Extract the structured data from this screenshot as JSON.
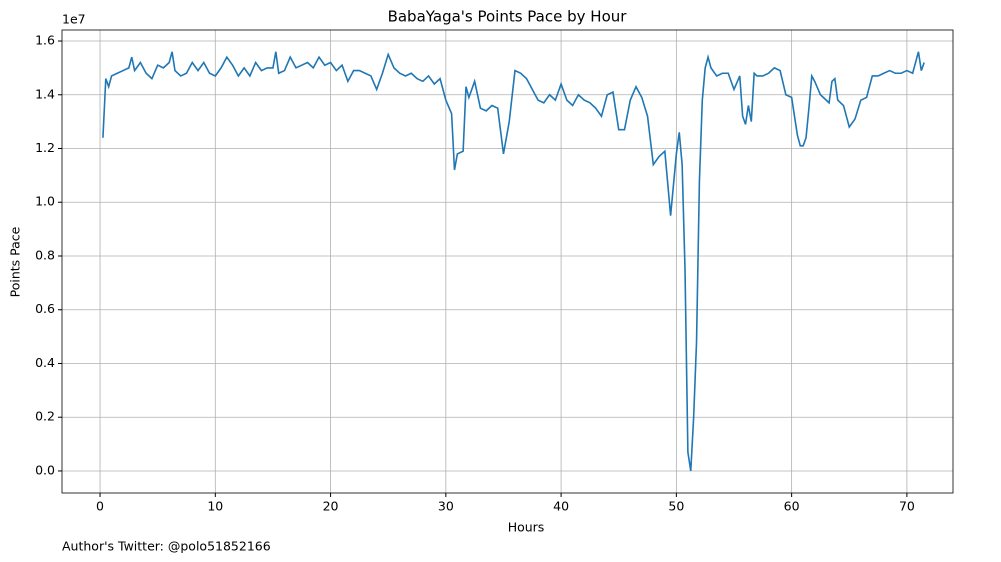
{
  "chart_data": {
    "type": "line",
    "title": "BabaYaga's Points Pace by Hour",
    "xlabel": "Hours",
    "ylabel": "Points Pace",
    "y_offset_label": "1e7",
    "footer": "Author's Twitter: @polo51852166",
    "xlim": [
      -3.3,
      74.0
    ],
    "ylim": [
      -820000,
      16410000
    ],
    "xticks": [
      0,
      10,
      20,
      30,
      40,
      50,
      60,
      70
    ],
    "yticks": [
      {
        "value": 0,
        "label": "0.0"
      },
      {
        "value": 2000000,
        "label": "0.2"
      },
      {
        "value": 4000000,
        "label": "0.4"
      },
      {
        "value": 6000000,
        "label": "0.6"
      },
      {
        "value": 8000000,
        "label": "0.8"
      },
      {
        "value": 10000000,
        "label": "1.0"
      },
      {
        "value": 12000000,
        "label": "1.2"
      },
      {
        "value": 14000000,
        "label": "1.4"
      },
      {
        "value": 16000000,
        "label": "1.6"
      }
    ],
    "grid": true,
    "series": [
      {
        "name": "Points Pace",
        "color": "#1f77b4",
        "x": [
          0.25,
          0.5,
          0.75,
          1.0,
          1.5,
          2.0,
          2.5,
          2.75,
          3.0,
          3.5,
          4.0,
          4.5,
          5.0,
          5.5,
          6.0,
          6.25,
          6.5,
          7.0,
          7.5,
          8.0,
          8.5,
          9.0,
          9.5,
          10.0,
          10.5,
          11.0,
          11.5,
          12.0,
          12.5,
          13.0,
          13.5,
          14.0,
          14.5,
          15.0,
          15.25,
          15.5,
          16.0,
          16.5,
          17.0,
          17.5,
          18.0,
          18.5,
          19.0,
          19.5,
          20.0,
          20.5,
          21.0,
          21.5,
          22.0,
          22.5,
          23.0,
          23.5,
          24.0,
          24.5,
          25.0,
          25.5,
          26.0,
          26.5,
          27.0,
          27.5,
          28.0,
          28.5,
          29.0,
          29.5,
          30.0,
          30.5,
          30.75,
          31.0,
          31.5,
          31.75,
          32.0,
          32.5,
          33.0,
          33.5,
          34.0,
          34.5,
          35.0,
          35.5,
          36.0,
          36.5,
          37.0,
          37.5,
          38.0,
          38.5,
          39.0,
          39.5,
          40.0,
          40.5,
          41.0,
          41.5,
          42.0,
          42.5,
          43.0,
          43.5,
          44.0,
          44.5,
          45.0,
          45.5,
          46.0,
          46.5,
          47.0,
          47.5,
          48.0,
          48.5,
          49.0,
          49.5,
          50.0,
          50.25,
          50.5,
          50.75,
          51.0,
          51.25,
          51.5,
          51.75,
          52.0,
          52.25,
          52.5,
          52.75,
          53.0,
          53.5,
          54.0,
          54.5,
          55.0,
          55.5,
          55.75,
          56.0,
          56.25,
          56.5,
          56.75,
          57.0,
          57.5,
          58.0,
          58.5,
          59.0,
          59.5,
          60.0,
          60.5,
          60.75,
          61.0,
          61.25,
          61.5,
          61.75,
          62.0,
          62.5,
          63.0,
          63.25,
          63.5,
          63.75,
          64.0,
          64.5,
          65.0,
          65.5,
          66.0,
          66.5,
          67.0,
          67.5,
          68.0,
          68.5,
          69.0,
          69.5,
          70.0,
          70.5,
          71.0,
          71.25,
          71.5
        ],
        "values": [
          12400000,
          14600000,
          14300000,
          14700000,
          14800000,
          14900000,
          15000000,
          15400000,
          14900000,
          15200000,
          14800000,
          14600000,
          15100000,
          15000000,
          15200000,
          15600000,
          14900000,
          14700000,
          14800000,
          15200000,
          14900000,
          15200000,
          14800000,
          14700000,
          15000000,
          15400000,
          15100000,
          14700000,
          15000000,
          14700000,
          15200000,
          14900000,
          15000000,
          15000000,
          15600000,
          14800000,
          14900000,
          15400000,
          15000000,
          15100000,
          15200000,
          15000000,
          15400000,
          15100000,
          15200000,
          14900000,
          15100000,
          14500000,
          14900000,
          14900000,
          14800000,
          14700000,
          14200000,
          14800000,
          15500000,
          15000000,
          14800000,
          14700000,
          14800000,
          14600000,
          14500000,
          14700000,
          14400000,
          14600000,
          13800000,
          13300000,
          11200000,
          11800000,
          11900000,
          14300000,
          13900000,
          14500000,
          13500000,
          13400000,
          13600000,
          13500000,
          11800000,
          13000000,
          14900000,
          14800000,
          14600000,
          14200000,
          13800000,
          13700000,
          14000000,
          13800000,
          14400000,
          13800000,
          13600000,
          14000000,
          13800000,
          13700000,
          13500000,
          13200000,
          14000000,
          14100000,
          12700000,
          12700000,
          13800000,
          14300000,
          13900000,
          13200000,
          11400000,
          11700000,
          11900000,
          9500000,
          11800000,
          12600000,
          11400000,
          7500000,
          700000,
          0,
          2000000,
          4800000,
          10800000,
          13800000,
          15000000,
          15400000,
          15000000,
          14700000,
          14800000,
          14800000,
          14200000,
          14700000,
          13200000,
          12900000,
          13600000,
          13000000,
          14800000,
          14700000,
          14700000,
          14800000,
          15000000,
          14900000,
          14000000,
          13900000,
          12500000,
          12100000,
          12100000,
          12400000,
          13500000,
          14700000,
          14500000,
          14000000,
          13800000,
          13700000,
          14500000,
          14600000,
          13800000,
          13600000,
          12800000,
          13100000,
          13800000,
          13900000,
          14700000,
          14700000,
          14800000,
          14900000,
          14800000,
          14800000,
          14900000,
          14800000,
          15600000,
          14900000,
          15200000
        ]
      }
    ]
  }
}
